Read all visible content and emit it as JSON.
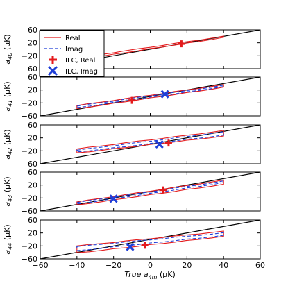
{
  "chart_data": {
    "type": "line",
    "xlabel": "True a_4m (μK)",
    "xlim": [
      -60,
      60
    ],
    "x_ticks": [
      "−60",
      "−40",
      "−20",
      "0",
      "20",
      "40",
      "60"
    ],
    "ylim": [
      -60,
      60
    ],
    "y_ticks": [
      "−60",
      "−20",
      "20",
      "60"
    ],
    "colors": {
      "real": "#e41a1c",
      "imag": "#1f3fd8",
      "diagonal": "#000000"
    },
    "legend": [
      {
        "label": "Real",
        "style": "solid-red"
      },
      {
        "label": "Imag",
        "style": "dashed-blue"
      },
      {
        "label": "ILC, Real",
        "marker": "plus-red"
      },
      {
        "label": "ILC, Imag",
        "marker": "x-blue"
      }
    ],
    "panels": [
      {
        "ylabel": "a_40 (μK)",
        "real_band": {
          "x": [
            -40,
            40
          ],
          "lower": [
            -33,
            36
          ],
          "upper": [
            -27,
            40
          ]
        },
        "imag_band": null,
        "ilc_real": {
          "x": 17,
          "y": 17
        },
        "ilc_imag": null
      },
      {
        "ylabel": "a_41 (μK)",
        "real_band": {
          "x": [
            -40,
            40
          ],
          "lower": [
            -38,
            28
          ],
          "upper": [
            -28,
            36
          ]
        },
        "imag_band": {
          "x": [
            -40,
            40
          ],
          "lower": [
            -35,
            30
          ],
          "upper": [
            -30,
            34
          ]
        },
        "ilc_real": {
          "x": -10,
          "y": -12
        },
        "ilc_imag": {
          "x": 8,
          "y": 7
        }
      },
      {
        "ylabel": "a_42 (μK)",
        "real_band": {
          "x": [
            -40,
            40
          ],
          "lower": [
            -27,
            25
          ],
          "upper": [
            -14,
            42
          ]
        },
        "imag_band": {
          "x": [
            -40,
            40
          ],
          "lower": [
            -24,
            28
          ],
          "upper": [
            -18,
            38
          ]
        },
        "ilc_real": {
          "x": 10,
          "y": 4
        },
        "ilc_imag": {
          "x": 5,
          "y": 0
        }
      },
      {
        "ylabel": "a_43 (μK)",
        "real_band": {
          "x": [
            -40,
            40
          ],
          "lower": [
            -42,
            22
          ],
          "upper": [
            -32,
            35
          ]
        },
        "imag_band": {
          "x": [
            -40,
            40
          ],
          "lower": [
            -39,
            27
          ],
          "upper": [
            -34,
            32
          ]
        },
        "ilc_real": {
          "x": 7,
          "y": 5
        },
        "ilc_imag": {
          "x": -20,
          "y": -22
        }
      },
      {
        "ylabel": "a_44 (μK)",
        "real_band": {
          "x": [
            -40,
            40
          ],
          "lower": [
            -42,
            9
          ],
          "upper": [
            -20,
            25
          ]
        },
        "imag_band": {
          "x": [
            -40,
            40
          ],
          "lower": [
            -35,
            12
          ],
          "upper": [
            -22,
            20
          ]
        },
        "ilc_real": {
          "x": -3,
          "y": -18
        },
        "ilc_imag": {
          "x": -11,
          "y": -23
        }
      }
    ]
  }
}
